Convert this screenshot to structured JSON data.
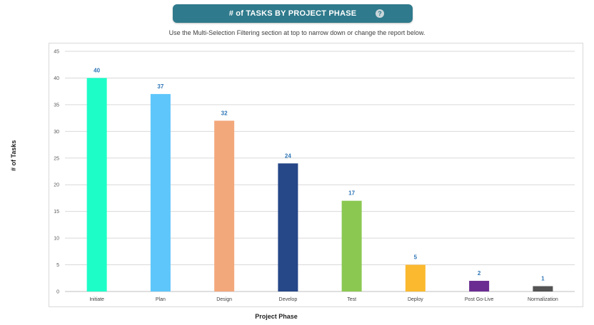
{
  "header": {
    "title": "# of TASKS BY PROJECT PHASE",
    "help_icon": "question-circle-icon"
  },
  "subtitle": "Use the Multi-Selection Filtering section at top to narrow down or change the report below.",
  "chart_data": {
    "type": "bar",
    "title": "# of TASKS BY PROJECT PHASE",
    "xlabel": "Project Phase",
    "ylabel": "# of Tasks",
    "categories": [
      "Initiate",
      "Plan",
      "Design",
      "Develop",
      "Test",
      "Deploy",
      "Post Go-Live",
      "Normalization"
    ],
    "values": [
      40,
      37,
      32,
      24,
      17,
      5,
      2,
      1
    ],
    "colors": [
      "#1dfdc8",
      "#5ec6fb",
      "#f3a87c",
      "#264788",
      "#8bc852",
      "#fbb92f",
      "#6a2c91",
      "#545454"
    ],
    "label_color": "#2e75b6",
    "ylim": [
      0,
      45
    ],
    "yticks": [
      0,
      5,
      10,
      15,
      20,
      25,
      30,
      35,
      40,
      45
    ],
    "grid": true,
    "legend": "none"
  }
}
